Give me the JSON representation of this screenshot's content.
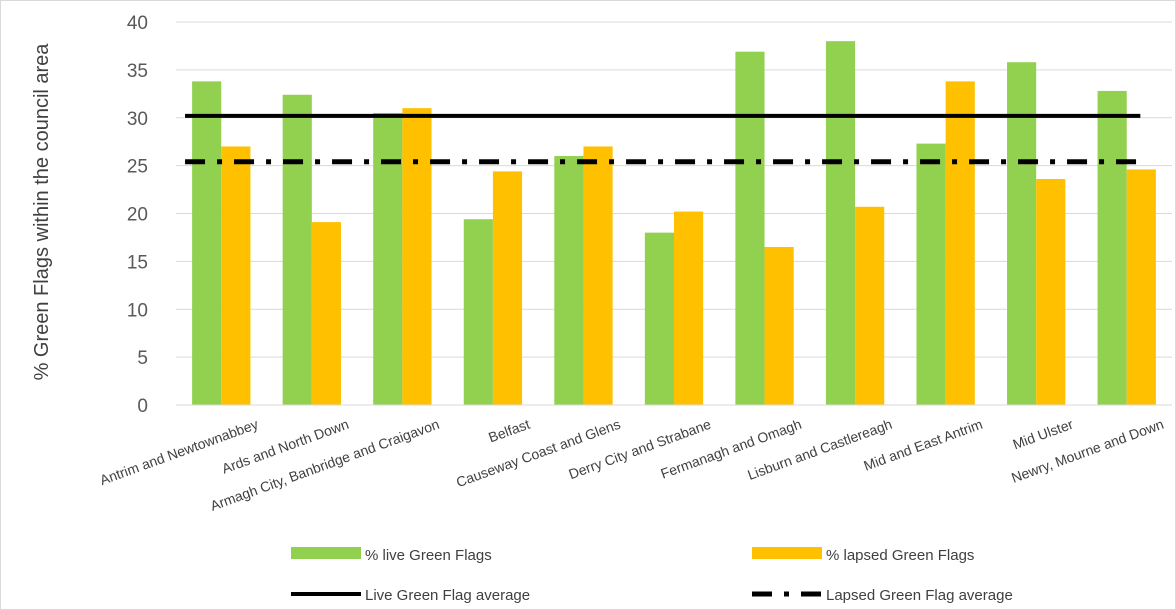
{
  "chart_data": {
    "type": "bar",
    "ylabel": "% Green Flags within the council area",
    "xlabel": "",
    "ylim": [
      0,
      40
    ],
    "yticks": [
      0,
      5,
      10,
      15,
      20,
      25,
      30,
      35,
      40
    ],
    "grid": true,
    "legend_position": "bottom",
    "categories": [
      "Antrim and Newtownabbey",
      "Ards and North Down",
      "Armagh City, Banbridge and Craigavon",
      "Belfast",
      "Causeway Coast and Glens",
      "Derry City and Strabane",
      "Fermanagh and Omagh",
      "Lisburn and Castlereagh",
      "Mid and East Antrim",
      "Mid Ulster",
      "Newry, Mourne and Down"
    ],
    "series": [
      {
        "name": "% live Green Flags",
        "type": "bar",
        "color": "#92d050",
        "values": [
          33.8,
          32.4,
          30.5,
          19.4,
          26.0,
          18.0,
          36.9,
          38.0,
          27.3,
          35.8,
          32.8
        ]
      },
      {
        "name": "% lapsed Green Flags",
        "type": "bar",
        "color": "#ffc000",
        "values": [
          27.0,
          19.1,
          31.0,
          24.4,
          27.0,
          20.2,
          16.5,
          20.7,
          33.8,
          23.6,
          24.6
        ]
      }
    ],
    "lines": [
      {
        "name": "Live Green Flag average",
        "style": "solid",
        "color": "#000000",
        "value": 30.2
      },
      {
        "name": "Lapsed Green Flag average",
        "style": "dash-dot",
        "color": "#000000",
        "value": 25.4
      }
    ]
  }
}
